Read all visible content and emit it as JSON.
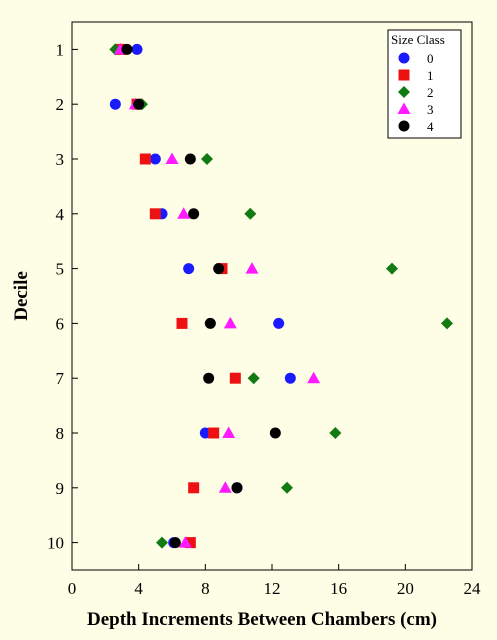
{
  "chart_data": {
    "type": "scatter",
    "title": "",
    "xlabel": "Depth Increments Between Chambers (cm)",
    "ylabel": "Decile",
    "xlim": [
      0,
      24
    ],
    "ylim": [
      0.5,
      10.5
    ],
    "y_reversed": true,
    "x_ticks": [
      "0",
      "4",
      "8",
      "12",
      "16",
      "20",
      "24"
    ],
    "y_ticks": [
      "1",
      "2",
      "3",
      "4",
      "5",
      "6",
      "7",
      "8",
      "9",
      "10"
    ],
    "grid": false,
    "legend": {
      "title": "Size Class",
      "position": "top-right"
    },
    "series": [
      {
        "name": "0",
        "marker": "circle",
        "color": "#1a1aff",
        "points": [
          [
            3.9,
            1
          ],
          [
            2.6,
            2
          ],
          [
            5.0,
            3
          ],
          [
            5.4,
            4
          ],
          [
            7.0,
            5
          ],
          [
            12.4,
            6
          ],
          [
            13.1,
            7
          ],
          [
            8.0,
            8
          ],
          [
            9.9,
            9
          ],
          [
            6.1,
            10
          ]
        ]
      },
      {
        "name": "1",
        "marker": "square",
        "color": "#ee1111",
        "points": [
          [
            2.9,
            1
          ],
          [
            3.9,
            2
          ],
          [
            4.4,
            3
          ],
          [
            5.0,
            4
          ],
          [
            9.0,
            5
          ],
          [
            6.6,
            6
          ],
          [
            9.8,
            7
          ],
          [
            8.5,
            8
          ],
          [
            7.3,
            9
          ],
          [
            7.1,
            10
          ]
        ]
      },
      {
        "name": "2",
        "marker": "diamond",
        "color": "#127a12",
        "points": [
          [
            2.6,
            1
          ],
          [
            4.2,
            2
          ],
          [
            8.1,
            3
          ],
          [
            10.7,
            4
          ],
          [
            19.2,
            5
          ],
          [
            22.5,
            6
          ],
          [
            10.9,
            7
          ],
          [
            15.8,
            8
          ],
          [
            12.9,
            9
          ],
          [
            5.4,
            10
          ]
        ]
      },
      {
        "name": "3",
        "marker": "triangle",
        "color": "#ff1aff",
        "points": [
          [
            2.9,
            1
          ],
          [
            3.8,
            2
          ],
          [
            6.0,
            3
          ],
          [
            6.7,
            4
          ],
          [
            10.8,
            5
          ],
          [
            9.5,
            6
          ],
          [
            14.5,
            7
          ],
          [
            9.4,
            8
          ],
          [
            9.2,
            9
          ],
          [
            6.8,
            10
          ]
        ]
      },
      {
        "name": "4",
        "marker": "circle",
        "color": "#000000",
        "points": [
          [
            3.3,
            1
          ],
          [
            4.0,
            2
          ],
          [
            7.1,
            3
          ],
          [
            7.3,
            4
          ],
          [
            8.8,
            5
          ],
          [
            8.3,
            6
          ],
          [
            8.2,
            7
          ],
          [
            12.2,
            8
          ],
          [
            9.9,
            9
          ],
          [
            6.2,
            10
          ]
        ]
      }
    ]
  }
}
